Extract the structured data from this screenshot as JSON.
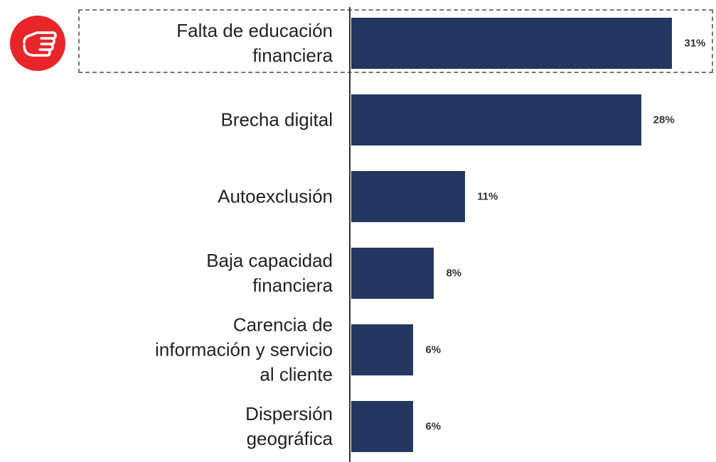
{
  "chart_data": {
    "type": "bar",
    "orientation": "horizontal",
    "categories": [
      "Falta de educación\nfinanciera",
      "Brecha digital",
      "Autoexclusión",
      "Baja capacidad\nfinanciera",
      "Carencia de\ninformación y servicio\nal cliente",
      "Dispersión\ngeográfica"
    ],
    "values": [
      31,
      28,
      11,
      8,
      6,
      6
    ],
    "value_labels": [
      "31%",
      "28%",
      "11%",
      "8%",
      "6%",
      "6%"
    ],
    "color": "#233761"
  }
}
